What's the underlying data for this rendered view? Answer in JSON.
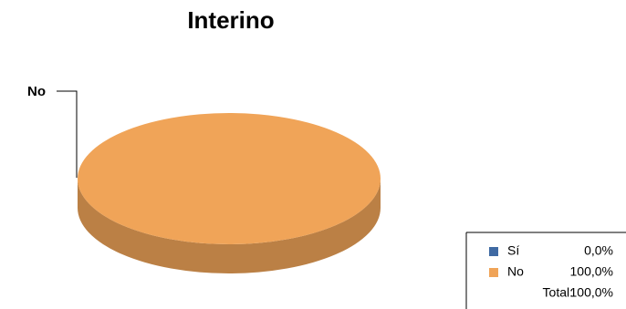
{
  "chart_data": {
    "type": "pie",
    "title": "Interino",
    "categories": [
      "Sí",
      "No"
    ],
    "values": [
      0,
      100
    ],
    "value_labels": [
      "0,0%",
      "100,0%"
    ],
    "colors": [
      "#3f6aa3",
      "#f0a458"
    ],
    "total": {
      "label": "Total:",
      "value": 100,
      "value_label": "100,0%"
    }
  }
}
